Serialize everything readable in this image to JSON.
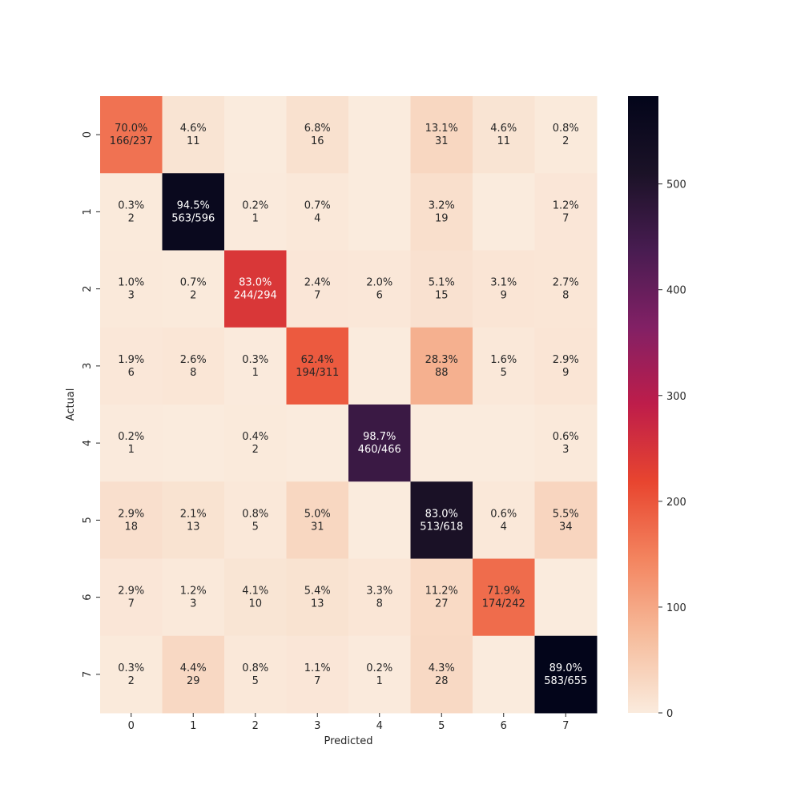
{
  "chart_data": {
    "type": "heatmap",
    "title": "",
    "xlabel": "Predicted",
    "ylabel": "Actual",
    "x_categories": [
      "0",
      "1",
      "2",
      "3",
      "4",
      "5",
      "6",
      "7"
    ],
    "y_categories": [
      "0",
      "1",
      "2",
      "3",
      "4",
      "5",
      "6",
      "7"
    ],
    "values": [
      [
        166,
        11,
        0,
        16,
        0,
        31,
        11,
        2
      ],
      [
        2,
        563,
        1,
        4,
        0,
        19,
        0,
        7
      ],
      [
        3,
        2,
        244,
        7,
        6,
        15,
        9,
        8
      ],
      [
        6,
        8,
        1,
        194,
        0,
        88,
        5,
        9
      ],
      [
        1,
        0,
        2,
        0,
        460,
        0,
        0,
        3
      ],
      [
        18,
        13,
        5,
        31,
        0,
        513,
        4,
        34
      ],
      [
        7,
        3,
        10,
        13,
        8,
        27,
        174,
        0
      ],
      [
        2,
        29,
        5,
        7,
        1,
        28,
        0,
        583
      ]
    ],
    "annotations": [
      [
        [
          "70.0%",
          "166/237"
        ],
        [
          "4.6%",
          "11"
        ],
        [
          "",
          ""
        ],
        [
          "6.8%",
          "16"
        ],
        [
          "",
          ""
        ],
        [
          "13.1%",
          "31"
        ],
        [
          "4.6%",
          "11"
        ],
        [
          "0.8%",
          "2"
        ]
      ],
      [
        [
          "0.3%",
          "2"
        ],
        [
          "94.5%",
          "563/596"
        ],
        [
          "0.2%",
          "1"
        ],
        [
          "0.7%",
          "4"
        ],
        [
          "",
          ""
        ],
        [
          "3.2%",
          "19"
        ],
        [
          "",
          ""
        ],
        [
          "1.2%",
          "7"
        ]
      ],
      [
        [
          "1.0%",
          "3"
        ],
        [
          "0.7%",
          "2"
        ],
        [
          "83.0%",
          "244/294"
        ],
        [
          "2.4%",
          "7"
        ],
        [
          "2.0%",
          "6"
        ],
        [
          "5.1%",
          "15"
        ],
        [
          "3.1%",
          "9"
        ],
        [
          "2.7%",
          "8"
        ]
      ],
      [
        [
          "1.9%",
          "6"
        ],
        [
          "2.6%",
          "8"
        ],
        [
          "0.3%",
          "1"
        ],
        [
          "62.4%",
          "194/311"
        ],
        [
          "",
          ""
        ],
        [
          "28.3%",
          "88"
        ],
        [
          "1.6%",
          "5"
        ],
        [
          "2.9%",
          "9"
        ]
      ],
      [
        [
          "0.2%",
          "1"
        ],
        [
          "",
          ""
        ],
        [
          "0.4%",
          "2"
        ],
        [
          "",
          ""
        ],
        [
          "98.7%",
          "460/466"
        ],
        [
          "",
          ""
        ],
        [
          "",
          ""
        ],
        [
          "0.6%",
          "3"
        ]
      ],
      [
        [
          "2.9%",
          "18"
        ],
        [
          "2.1%",
          "13"
        ],
        [
          "0.8%",
          "5"
        ],
        [
          "5.0%",
          "31"
        ],
        [
          "",
          ""
        ],
        [
          "83.0%",
          "513/618"
        ],
        [
          "0.6%",
          "4"
        ],
        [
          "5.5%",
          "34"
        ]
      ],
      [
        [
          "2.9%",
          "7"
        ],
        [
          "1.2%",
          "3"
        ],
        [
          "4.1%",
          "10"
        ],
        [
          "5.4%",
          "13"
        ],
        [
          "3.3%",
          "8"
        ],
        [
          "11.2%",
          "27"
        ],
        [
          "71.9%",
          "174/242"
        ],
        [
          "",
          ""
        ]
      ],
      [
        [
          "0.3%",
          "2"
        ],
        [
          "4.4%",
          "29"
        ],
        [
          "0.8%",
          "5"
        ],
        [
          "1.1%",
          "7"
        ],
        [
          "0.2%",
          "1"
        ],
        [
          "4.3%",
          "28"
        ],
        [
          "",
          ""
        ],
        [
          "89.0%",
          "583/655"
        ]
      ]
    ],
    "colorbar": {
      "min": 0,
      "max": 583,
      "ticks": [
        0,
        100,
        200,
        300,
        400,
        500
      ],
      "colormap": "rocket_r"
    },
    "colormap_stops": [
      "#faebdd",
      "#f6bc9c",
      "#f3845f",
      "#e8452f",
      "#be1d4a",
      "#822065",
      "#481c51",
      "#1b1227",
      "#03051a"
    ],
    "text_color_dark": "#262626",
    "text_color_light": "#ffffff"
  }
}
